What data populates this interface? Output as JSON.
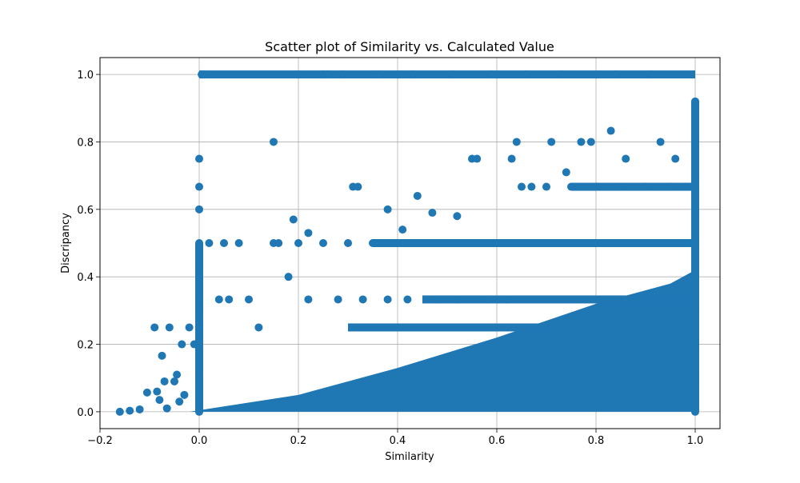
{
  "chart_data": {
    "type": "scatter",
    "title": "Scatter plot of Similarity vs. Calculated Value",
    "xlabel": "Similarity",
    "ylabel": "Discripancy",
    "xlim": [
      -0.2,
      1.05
    ],
    "ylim": [
      -0.05,
      1.05
    ],
    "xticks": [
      -0.2,
      0.0,
      0.2,
      0.4,
      0.6,
      0.8,
      1.0
    ],
    "yticks": [
      0.0,
      0.2,
      0.4,
      0.6,
      0.8,
      1.0
    ],
    "xtick_labels": [
      "−0.2",
      "0.0",
      "0.2",
      "0.4",
      "0.6",
      "0.8",
      "1.0"
    ],
    "ytick_labels": [
      "0.0",
      "0.2",
      "0.4",
      "0.6",
      "0.8",
      "1.0"
    ],
    "grid": true,
    "color": "#1f77b4",
    "series": [
      {
        "x": [
          -0.16,
          -0.14,
          -0.12,
          -0.105,
          -0.09,
          -0.085,
          -0.08,
          -0.075,
          -0.07,
          -0.065,
          -0.06,
          -0.05,
          -0.045,
          -0.04,
          -0.035,
          -0.03,
          -0.02,
          -0.01,
          0.0,
          0.0,
          0.0,
          0.0,
          0.0,
          0.0,
          0.0,
          0.0,
          0.0,
          0.0,
          0.0,
          0.0,
          0.005,
          0.01,
          0.02,
          0.04,
          0.05,
          0.06,
          0.08,
          0.1,
          0.12,
          0.15,
          0.16,
          0.18,
          0.2,
          0.22,
          0.25,
          0.28,
          0.3,
          0.33,
          0.35,
          0.38,
          0.4,
          0.42,
          0.45,
          0.48,
          0.5,
          0.52,
          0.55,
          0.58,
          0.6,
          0.62,
          0.65,
          0.68,
          0.7,
          0.72,
          0.75,
          0.78,
          0.8,
          0.82,
          0.85,
          0.88,
          0.9,
          0.92,
          0.95,
          0.97,
          0.99,
          1.0,
          1.0,
          1.0,
          1.0,
          1.0,
          1.0,
          1.0,
          1.0,
          1.0,
          1.0,
          0.83,
          0.77,
          0.71,
          0.55,
          0.63,
          0.15,
          0.19,
          0.22,
          0.38,
          0.41,
          0.44,
          0.47,
          0.52,
          0.56,
          0.64,
          0.67,
          0.74,
          0.79,
          0.86,
          0.93,
          0.96,
          0.98,
          0.32,
          0.31,
          0.25,
          0.26,
          0.29,
          0.36,
          0.43,
          0.51,
          0.59,
          0.66,
          0.73,
          0.84,
          0.91
        ],
        "y": [
          0.0,
          0.003,
          0.007,
          0.057,
          0.25,
          0.06,
          0.035,
          0.166,
          0.09,
          0.01,
          0.25,
          0.09,
          0.11,
          0.03,
          0.2,
          0.05,
          0.25,
          0.2,
          0.0,
          0.1,
          0.2,
          0.25,
          0.3,
          0.333,
          0.4,
          0.429,
          0.5,
          0.6,
          0.667,
          0.75,
          1.0,
          1.0,
          0.5,
          0.333,
          0.5,
          0.333,
          0.5,
          0.333,
          0.25,
          0.5,
          0.5,
          0.4,
          0.5,
          0.333,
          0.5,
          0.333,
          0.5,
          0.333,
          0.5,
          0.333,
          0.5,
          0.333,
          0.5,
          0.333,
          0.5,
          0.333,
          0.5,
          0.333,
          0.5,
          0.333,
          0.667,
          0.5,
          0.667,
          0.5,
          0.667,
          0.5,
          0.667,
          0.5,
          0.667,
          0.5,
          0.667,
          0.5,
          0.667,
          0.5,
          0.667,
          0.0,
          0.1,
          0.2,
          0.3,
          0.4,
          0.5,
          0.6,
          0.7,
          0.8,
          0.92,
          0.833,
          0.8,
          0.8,
          0.75,
          0.75,
          0.8,
          0.57,
          0.53,
          0.6,
          0.54,
          0.64,
          0.59,
          0.58,
          0.75,
          0.8,
          0.667,
          0.71,
          0.8,
          0.75,
          0.8,
          0.75,
          0.667,
          0.667,
          0.667,
          1.0,
          1.0,
          1.0,
          1.0,
          1.0,
          1.0,
          1.0,
          1.0,
          1.0,
          1.0,
          1.0
        ]
      }
    ]
  }
}
